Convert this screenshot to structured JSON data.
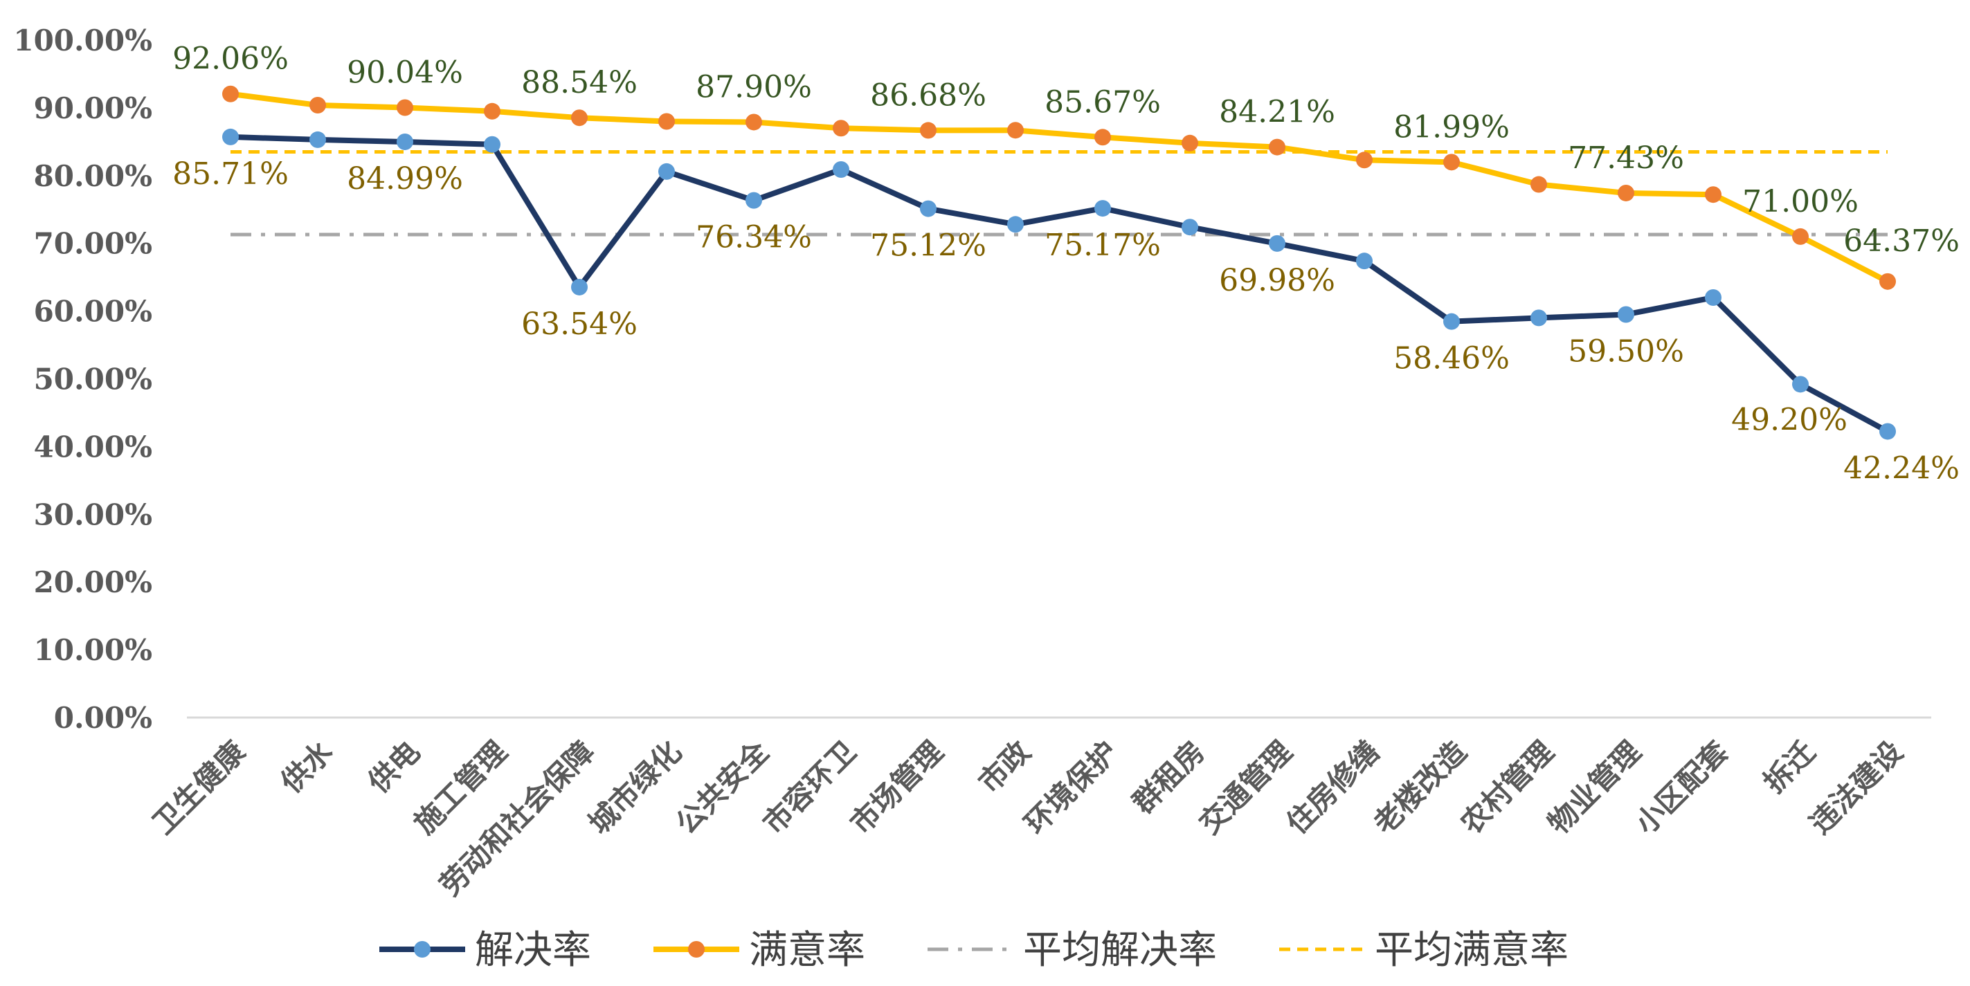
{
  "chart_data": {
    "type": "line",
    "categories": [
      "卫生健康",
      "供水",
      "供电",
      "施工管理",
      "劳动和社会保障",
      "城市绿化",
      "公共安全",
      "市容环卫",
      "市场管理",
      "市政",
      "环境保护",
      "群租房",
      "交通管理",
      "住房修缮",
      "老楼改造",
      "农村管理",
      "物业管理",
      "小区配套",
      "拆迁",
      "违法建设"
    ],
    "ylim": [
      0,
      100
    ],
    "yticks": [
      "0.00%",
      "10.00%",
      "20.00%",
      "30.00%",
      "40.00%",
      "50.00%",
      "60.00%",
      "70.00%",
      "80.00%",
      "90.00%",
      "100.00%"
    ],
    "grid": false,
    "legend_position": "bottom",
    "series": [
      {
        "name": "解决率",
        "kind": "line-marker",
        "line_color": "#1F3864",
        "marker_color": "#5B9BD5",
        "values": [
          85.71,
          85.3,
          84.99,
          84.6,
          63.54,
          80.6,
          76.34,
          80.9,
          75.12,
          72.8,
          75.17,
          72.4,
          69.98,
          67.4,
          58.46,
          59.0,
          59.5,
          62.0,
          49.2,
          42.24
        ],
        "labels": [
          "85.71%",
          null,
          "84.99%",
          null,
          "63.54%",
          null,
          "76.34%",
          null,
          "75.12%",
          null,
          "75.17%",
          null,
          "69.98%",
          null,
          "58.46%",
          null,
          "59.50%",
          null,
          "49.20%",
          "42.24%"
        ],
        "label_color": "#7F6000"
      },
      {
        "name": "满意率",
        "kind": "line-marker",
        "line_color": "#FFC000",
        "marker_color": "#ED7D31",
        "values": [
          92.06,
          90.4,
          90.04,
          89.5,
          88.54,
          88.0,
          87.9,
          87.0,
          86.68,
          86.7,
          85.67,
          84.8,
          84.21,
          82.3,
          81.99,
          78.7,
          77.43,
          77.2,
          71.0,
          64.37
        ],
        "labels": [
          "92.06%",
          null,
          "90.04%",
          null,
          "88.54%",
          null,
          "87.90%",
          null,
          "86.68%",
          null,
          "85.67%",
          null,
          "84.21%",
          null,
          "81.99%",
          null,
          "77.43%",
          null,
          "71.00%",
          "64.37%"
        ],
        "label_color": "#375623"
      },
      {
        "name": "平均解决率",
        "kind": "dashdot",
        "line_color": "#A6A6A6",
        "value": 71.3
      },
      {
        "name": "平均满意率",
        "kind": "dashed",
        "line_color": "#FFC000",
        "value": 83.5
      }
    ]
  }
}
